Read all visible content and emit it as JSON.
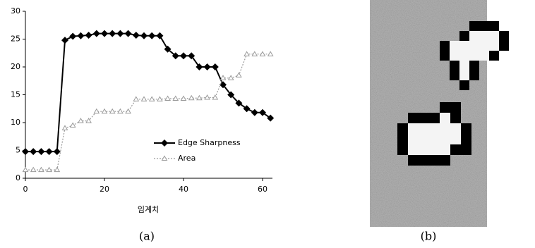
{
  "chart_data": {
    "type": "line",
    "x": [
      0,
      2,
      4,
      6,
      8,
      10,
      12,
      14,
      16,
      18,
      20,
      22,
      24,
      26,
      28,
      30,
      32,
      34,
      36,
      38,
      40,
      42,
      44,
      46,
      48,
      50,
      52,
      54,
      56,
      58,
      60,
      62
    ],
    "series": [
      {
        "name": "Edge Sharpness",
        "color": "#000000",
        "marker": "diamond",
        "dashed": false,
        "values": [
          4.8,
          4.8,
          4.8,
          4.8,
          4.8,
          24.8,
          25.5,
          25.6,
          25.7,
          26,
          26,
          26,
          26,
          26,
          25.7,
          25.6,
          25.6,
          25.6,
          23.2,
          22,
          22,
          22,
          20,
          20,
          20,
          16.8,
          15,
          13.5,
          12.5,
          11.8,
          11.8,
          10.8
        ]
      },
      {
        "name": "Area",
        "color": "#9a9a9a",
        "marker": "triangle",
        "dashed": true,
        "values": [
          1.5,
          1.5,
          1.5,
          1.5,
          1.5,
          9,
          9.5,
          10.3,
          10.3,
          12,
          12,
          12,
          12,
          12,
          14.2,
          14.2,
          14.2,
          14.2,
          14.3,
          14.3,
          14.3,
          14.4,
          14.4,
          14.5,
          14.5,
          18,
          18,
          18.5,
          22.3,
          22.3,
          22.3,
          22.3
        ]
      }
    ],
    "xlabel": "임계치",
    "xlim": [
      0,
      62.5
    ],
    "xticks": [
      0,
      20,
      40,
      60
    ],
    "ylim": [
      0,
      30
    ],
    "yticks": [
      0,
      5,
      10,
      15,
      20,
      25,
      30
    ]
  },
  "captions": [
    "(a)",
    "(b)"
  ]
}
